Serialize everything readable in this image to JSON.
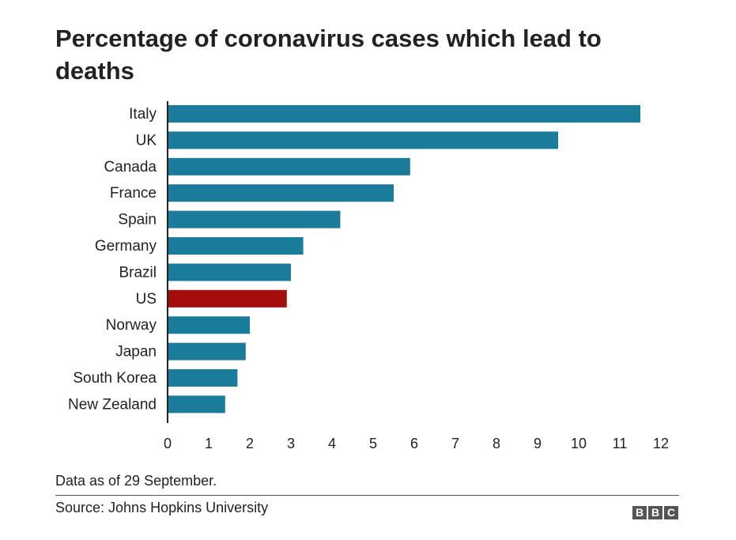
{
  "chart_data": {
    "type": "bar",
    "orientation": "horizontal",
    "title": "Percentage of coronavirus cases which lead to deaths",
    "categories": [
      "Italy",
      "UK",
      "Canada",
      "France",
      "Spain",
      "Germany",
      "Brazil",
      "US",
      "Norway",
      "Japan",
      "South Korea",
      "New Zealand"
    ],
    "values": [
      11.5,
      9.5,
      5.9,
      5.5,
      4.2,
      3.3,
      3.0,
      2.9,
      2.0,
      1.9,
      1.7,
      1.4
    ],
    "highlight": "US",
    "xlim": [
      0,
      12
    ],
    "xticks": [
      0,
      1,
      2,
      3,
      4,
      5,
      6,
      7,
      8,
      9,
      10,
      11,
      12
    ],
    "grid": false,
    "colors": {
      "default": "#1b7b9a",
      "highlight": "#a50d0d"
    },
    "note": "Data as of 29 September.",
    "source": "Source: Johns Hopkins University"
  },
  "logo": [
    "B",
    "B",
    "C"
  ]
}
